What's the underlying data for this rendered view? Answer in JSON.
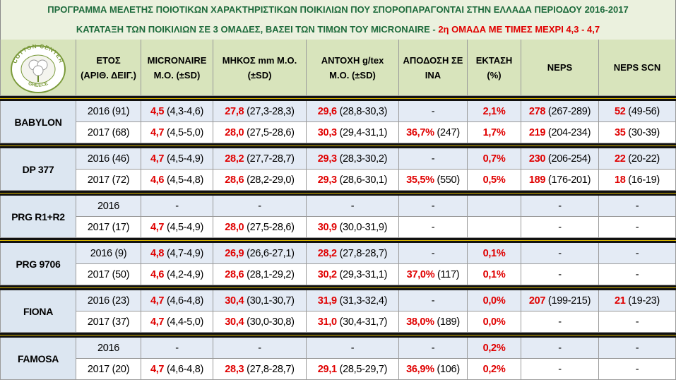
{
  "title": {
    "line1": "ΠΡΟΓΡΑΜΜΑ ΜΕΛΕΤΗΣ ΠΟΙΟΤΙΚΩΝ ΧΑΡΑΚΤΗΡΙΣΤΙΚΩΝ ΠΟΙΚΙΛΙΩΝ ΠΟΥ ΣΠΟΡΟΠΑΡΑΓΟΝΤΑΙ ΣΤΗΝ ΕΛΛΑΔΑ ΠΕΡΙΟΔΟΥ 2016-2017",
    "line2": "ΚΑΤΑΤΑΞΗ ΤΩΝ ΠΟΙΚΙΛΙΩΝ ΣΕ 3 ΟΜΑΔΕΣ, ΒΑΣΕΙ ΤΩΝ ΤΙΜΩΝ ΤΟΥ MICRONAIRE - ",
    "highlight": "2η ΟΜΑΔΑ ΜΕ ΤΙΜΕΣ ΜΕΧΡΙ 4,3 - 4,7"
  },
  "logo": {
    "top": "COTTON CENTER",
    "bottom": "GREECE"
  },
  "table": {
    "headers": [
      [
        "ΕΤΟΣ",
        "(ΑΡΙΘ. ΔΕΙΓ.)"
      ],
      [
        "MICRONAIRE",
        "Μ.Ο. (±SD)"
      ],
      [
        "ΜΗΚΟΣ mm Μ.Ο.",
        "(±SD)"
      ],
      [
        "ΑΝΤΟΧΗ g/tex",
        "Μ.Ο. (±SD)"
      ],
      [
        "ΑΠΟΔΟΣΗ ΣΕ",
        "ΙΝΑ"
      ],
      [
        "ΕΚΤΑΣΗ",
        "(%)"
      ],
      [
        "NEPS"
      ],
      [
        "NEPS SCN"
      ]
    ],
    "groups": [
      {
        "name": "BABYLON",
        "rows": [
          {
            "year": "2016 (91)",
            "cells": [
              {
                "value": "4,5",
                "range": "(4,3-4,6)"
              },
              {
                "value": "27,8",
                "range": "(27,3-28,3)"
              },
              {
                "value": "29,6",
                "range": "(28,8-30,3)"
              },
              "-",
              {
                "value": "2,1%"
              },
              {
                "value": "278",
                "range": "(267-289)"
              },
              {
                "value": "52",
                "range": "(49-56)"
              }
            ]
          },
          {
            "year": "2017 (68)",
            "cells": [
              {
                "value": "4,7",
                "range": "(4,5-5,0)"
              },
              {
                "value": "28,0",
                "range": "(27,5-28,6)"
              },
              {
                "value": "30,3",
                "range": "(29,4-31,1)"
              },
              {
                "value": "36,7%",
                "range": "(247)"
              },
              {
                "value": "1,7%"
              },
              {
                "value": "219",
                "range": "(204-234)"
              },
              {
                "value": "35",
                "range": "(30-39)"
              }
            ]
          }
        ]
      },
      {
        "name": "DP 377",
        "rows": [
          {
            "year": "2016 (46)",
            "cells": [
              {
                "value": "4,7",
                "range": "(4,5-4,9)"
              },
              {
                "value": "28,2",
                "range": "(27,7-28,7)"
              },
              {
                "value": "29,3",
                "range": "(28,3-30,2)"
              },
              "-",
              {
                "value": "0,7%"
              },
              {
                "value": "230",
                "range": "(206-254)"
              },
              {
                "value": "22",
                "range": "(20-22)"
              }
            ]
          },
          {
            "year": "2017 (72)",
            "cells": [
              {
                "value": "4,6",
                "range": "(4,5-4,8)"
              },
              {
                "value": "28,6",
                "range": "(28,2-29,0)"
              },
              {
                "value": "29,3",
                "range": "(28,6-30,1)"
              },
              {
                "value": "35,5%",
                "range": "(550)"
              },
              {
                "value": "0,5%"
              },
              {
                "value": "189",
                "range": "(176-201)"
              },
              {
                "value": "18",
                "range": "(16-19)"
              }
            ]
          }
        ]
      },
      {
        "name": "PRG R1+R2",
        "rows": [
          {
            "year": "2016",
            "cells": [
              "-",
              "-",
              "-",
              "-",
              null,
              "-",
              "-"
            ]
          },
          {
            "year": "2017 (17)",
            "cells": [
              {
                "value": "4,7",
                "range": "(4,5-4,9)"
              },
              {
                "value": "28,0",
                "range": "(27,5-28,6)"
              },
              {
                "value": "30,9",
                "range": "(30,0-31,9)"
              },
              "-",
              null,
              "-",
              "-"
            ]
          }
        ]
      },
      {
        "name": "PRG 9706",
        "rows": [
          {
            "year": "2016 (9)",
            "cells": [
              {
                "value": "4,8",
                "range": "(4,7-4,9)"
              },
              {
                "value": "26,9",
                "range": "(26,6-27,1)"
              },
              {
                "value": "28,2",
                "range": "(27,8-28,7)"
              },
              "-",
              {
                "value": "0,1%"
              },
              "-",
              "-"
            ]
          },
          {
            "year": "2017 (50)",
            "cells": [
              {
                "value": "4,6",
                "range": "(4,2-4,9)"
              },
              {
                "value": "28,6",
                "range": "(28,1-29,2)"
              },
              {
                "value": "30,2",
                "range": "(29,3-31,1)"
              },
              {
                "value": "37,0%",
                "range": "(117)"
              },
              {
                "value": "0,1%"
              },
              "-",
              "-"
            ]
          }
        ]
      },
      {
        "name": "FIONA",
        "rows": [
          {
            "year": "2016 (23)",
            "cells": [
              {
                "value": "4,7",
                "range": "(4,6-4,8)"
              },
              {
                "value": "30,4",
                "range": "(30,1-30,7)"
              },
              {
                "value": "31,9",
                "range": "(31,3-32,4)"
              },
              "-",
              {
                "value": "0,0%"
              },
              {
                "value": "207",
                "range": "(199-215)"
              },
              {
                "value": "21",
                "range": "(19-23)"
              }
            ]
          },
          {
            "year": "2017 (37)",
            "cells": [
              {
                "value": "4,7",
                "range": "(4,4-5,0)"
              },
              {
                "value": "30,4",
                "range": "(30,0-30,8)"
              },
              {
                "value": "31,0",
                "range": "(30,4-31,7)"
              },
              {
                "value": "38,0%",
                "range": "(189)"
              },
              {
                "value": "0,0%"
              },
              "-",
              "-"
            ]
          }
        ]
      },
      {
        "name": "FAMOSA",
        "rows": [
          {
            "year": "2016",
            "cells": [
              "-",
              "-",
              "-",
              "-",
              {
                "value": "0,2%"
              },
              "-",
              "-"
            ]
          },
          {
            "year": "2017 (20)",
            "cells": [
              {
                "value": "4,7",
                "range": "(4,6-4,8)"
              },
              {
                "value": "28,3",
                "range": "(27,8-28,7)"
              },
              {
                "value": "29,1",
                "range": "(28,5-29,7)"
              },
              {
                "value": "36,9%",
                "range": "(106)"
              },
              {
                "value": "0,2%"
              },
              "-",
              "-"
            ]
          }
        ]
      }
    ]
  }
}
